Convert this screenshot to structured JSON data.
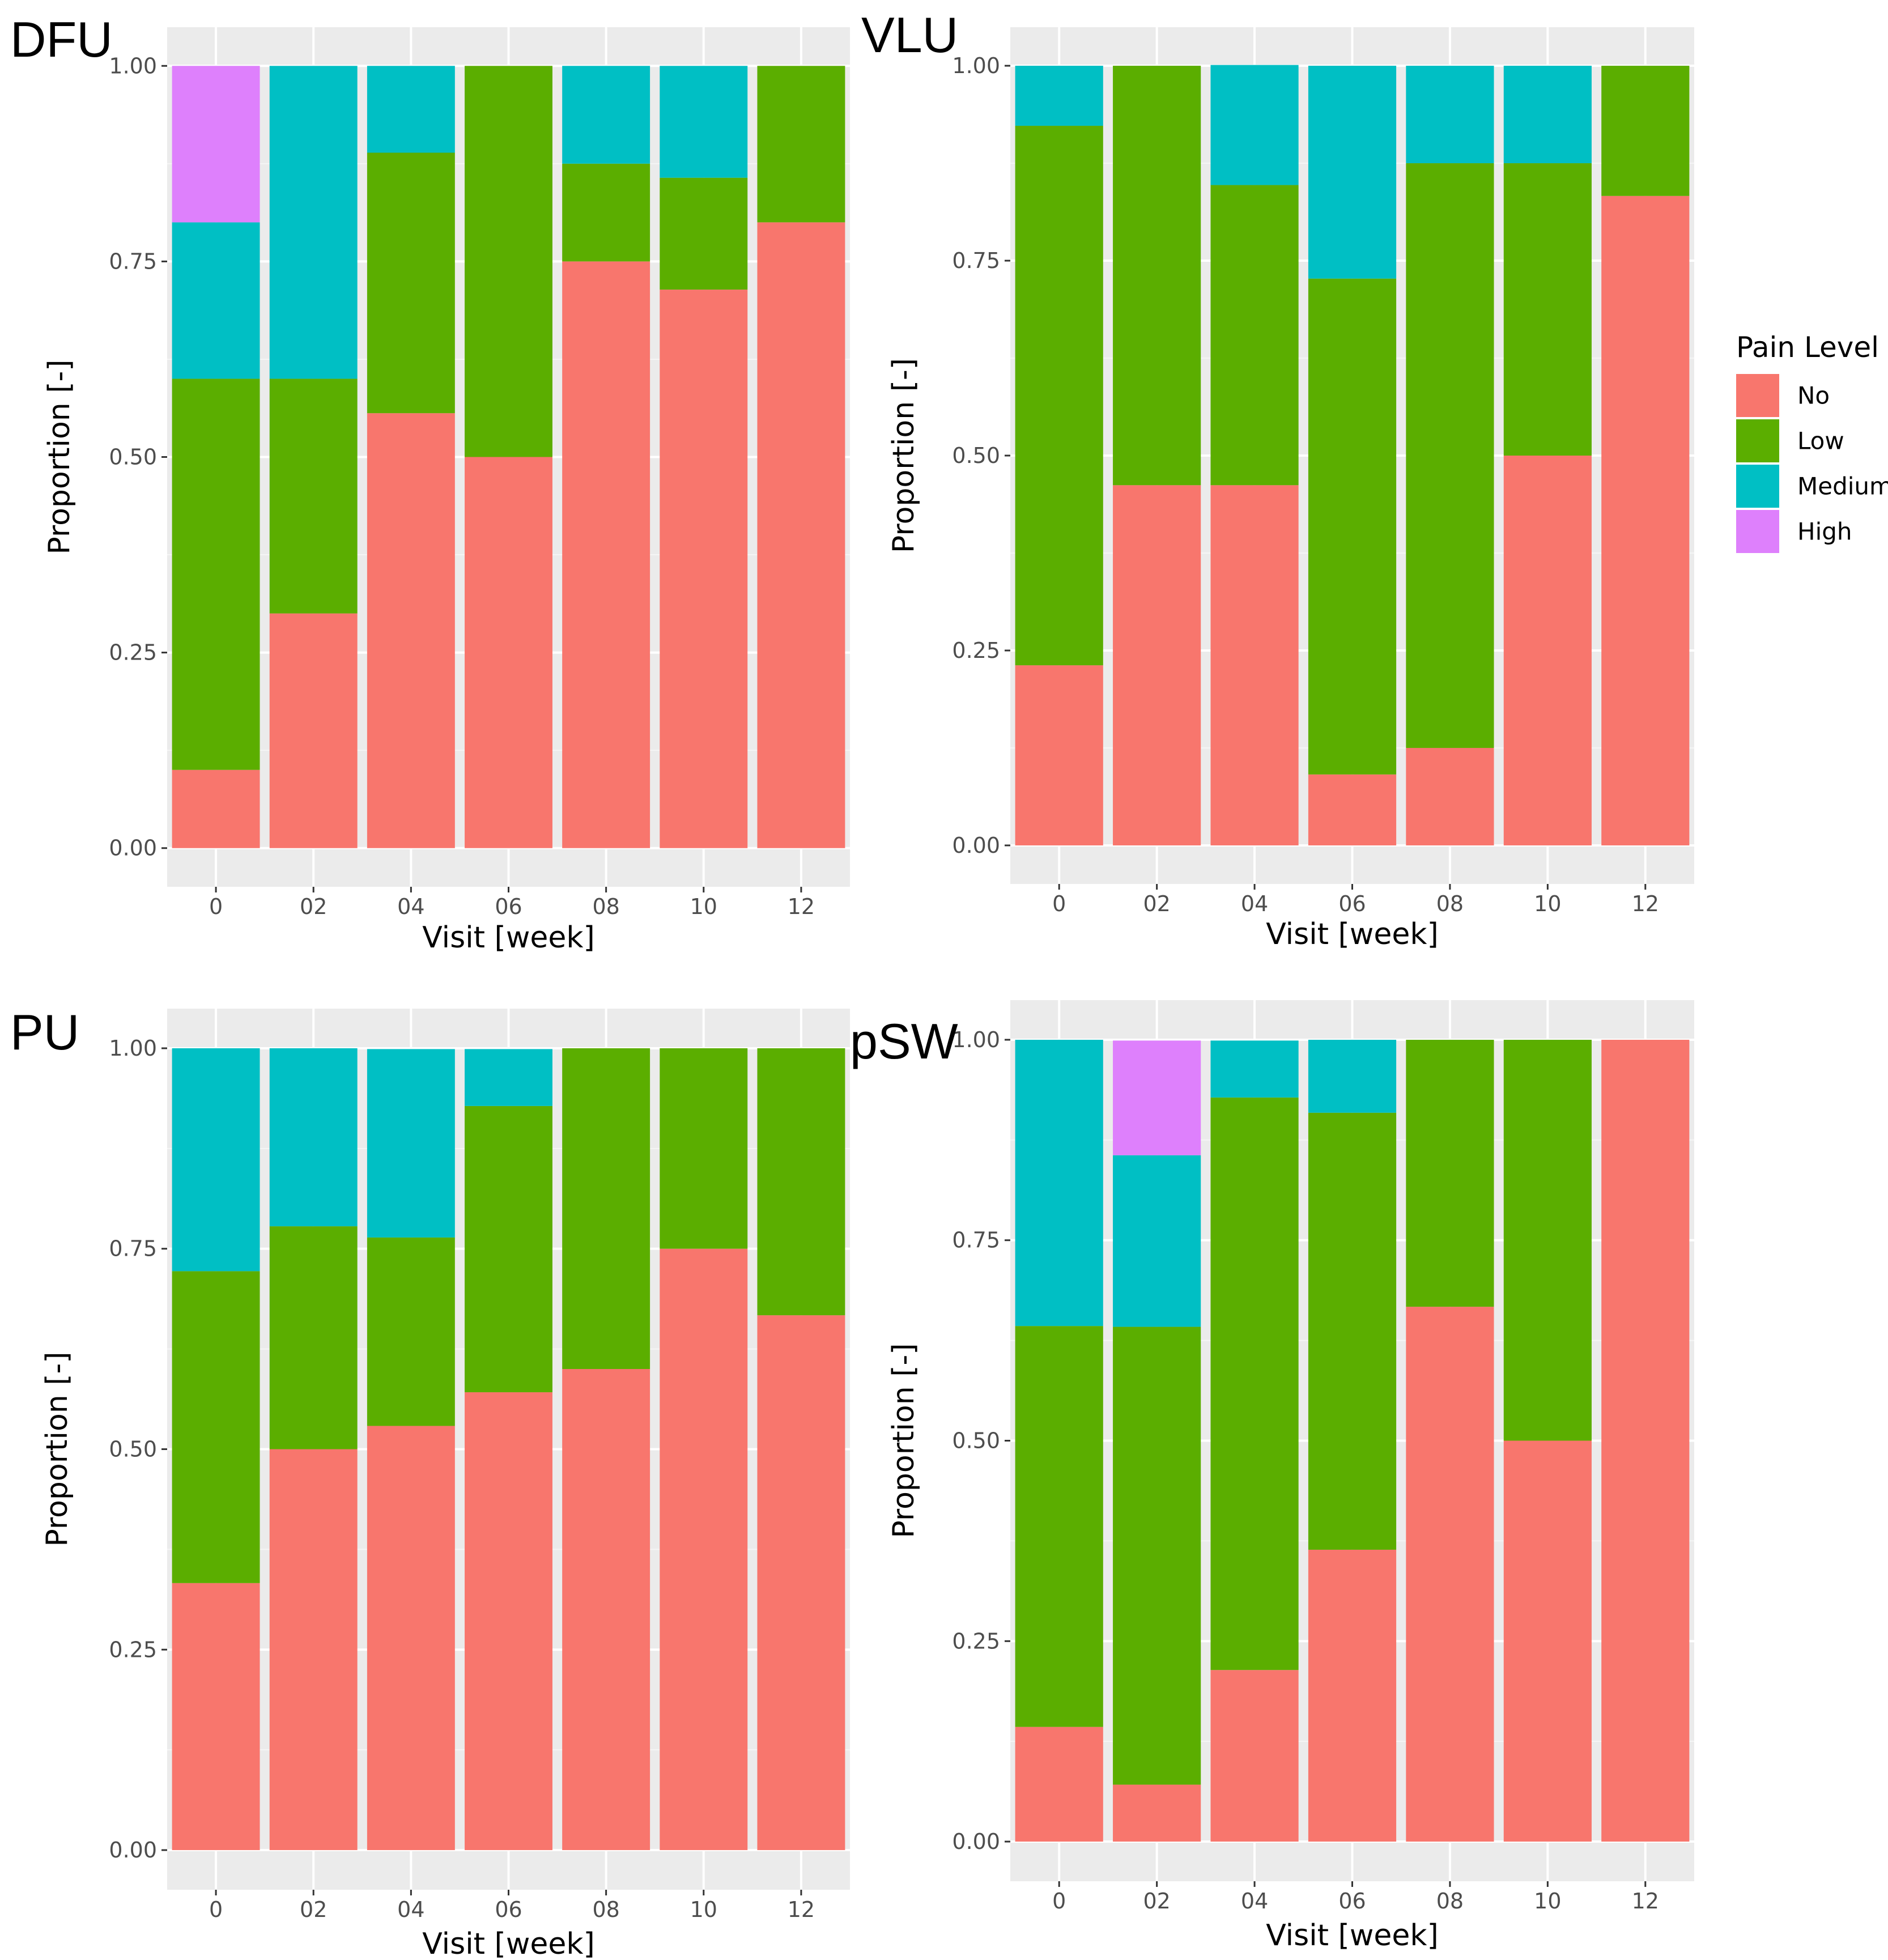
{
  "legend": {
    "title": "Pain Level",
    "entries": [
      {
        "key": "no",
        "label": "No",
        "color": "#F8766D"
      },
      {
        "key": "low",
        "label": "Low",
        "color": "#5BAE00"
      },
      {
        "key": "medium",
        "label": "Medium",
        "color": "#00BFC4"
      },
      {
        "key": "high",
        "label": "High",
        "color": "#DE80FC"
      }
    ]
  },
  "chart_data": [
    {
      "type": "bar",
      "stacked": true,
      "title": "DFU",
      "xlabel": "Visit [week]",
      "ylabel": "Proportion [-]",
      "ylim": [
        0,
        1
      ],
      "yticks": [
        "0.00",
        "0.25",
        "0.50",
        "0.75",
        "1.00"
      ],
      "categories": [
        "0",
        "02",
        "04",
        "06",
        "08",
        "10",
        "12"
      ],
      "series": [
        {
          "name": "No",
          "values": [
            0.1,
            0.3,
            0.556,
            0.5,
            0.75,
            0.714,
            0.8
          ]
        },
        {
          "name": "Low",
          "values": [
            0.5,
            0.3,
            0.333,
            0.5,
            0.125,
            0.143,
            0.2
          ]
        },
        {
          "name": "Medium",
          "values": [
            0.2,
            0.4,
            0.111,
            0.0,
            0.125,
            0.143,
            0.0
          ]
        },
        {
          "name": "High",
          "values": [
            0.2,
            0.0,
            0.0,
            0.0,
            0.0,
            0.0,
            0.0
          ]
        }
      ]
    },
    {
      "type": "bar",
      "stacked": true,
      "title": "VLU",
      "xlabel": "Visit [week]",
      "ylabel": "Proportion [-]",
      "ylim": [
        0,
        1
      ],
      "yticks": [
        "0.00",
        "0.25",
        "0.50",
        "0.75",
        "1.00"
      ],
      "categories": [
        "0",
        "02",
        "04",
        "06",
        "08",
        "10",
        "12"
      ],
      "series": [
        {
          "name": "No",
          "values": [
            0.231,
            0.462,
            0.462,
            0.091,
            0.125,
            0.5,
            0.833
          ]
        },
        {
          "name": "Low",
          "values": [
            0.692,
            0.538,
            0.385,
            0.636,
            0.75,
            0.375,
            0.167
          ]
        },
        {
          "name": "Medium",
          "values": [
            0.077,
            0.0,
            0.154,
            0.273,
            0.125,
            0.125,
            0.0
          ]
        },
        {
          "name": "High",
          "values": [
            0.0,
            0.0,
            0.0,
            0.0,
            0.0,
            0.0,
            0.0
          ]
        }
      ]
    },
    {
      "type": "bar",
      "stacked": true,
      "title": "PU",
      "xlabel": "Visit [week]",
      "ylabel": "Proportion [-]",
      "ylim": [
        0,
        1
      ],
      "yticks": [
        "0.00",
        "0.25",
        "0.50",
        "0.75",
        "1.00"
      ],
      "categories": [
        "0",
        "02",
        "04",
        "06",
        "08",
        "10",
        "12"
      ],
      "series": [
        {
          "name": "No",
          "values": [
            0.333,
            0.5,
            0.529,
            0.571,
            0.6,
            0.75,
            0.667
          ]
        },
        {
          "name": "Low",
          "values": [
            0.389,
            0.278,
            0.235,
            0.357,
            0.4,
            0.25,
            0.333
          ]
        },
        {
          "name": "Medium",
          "values": [
            0.278,
            0.222,
            0.235,
            0.071,
            0.0,
            0.0,
            0.0
          ]
        },
        {
          "name": "High",
          "values": [
            0.0,
            0.0,
            0.0,
            0.0,
            0.0,
            0.0,
            0.0
          ]
        }
      ]
    },
    {
      "type": "bar",
      "stacked": true,
      "title": "pSW",
      "xlabel": "Visit [week]",
      "ylabel": "Proportion [-]",
      "ylim": [
        0,
        1
      ],
      "yticks": [
        "0.00",
        "0.25",
        "0.50",
        "0.75",
        "1.00"
      ],
      "categories": [
        "0",
        "02",
        "04",
        "06",
        "08",
        "10",
        "12"
      ],
      "series": [
        {
          "name": "No",
          "values": [
            0.143,
            0.071,
            0.214,
            0.364,
            0.667,
            0.5,
            1.0
          ]
        },
        {
          "name": "Low",
          "values": [
            0.5,
            0.571,
            0.714,
            0.545,
            0.333,
            0.5,
            0.0
          ]
        },
        {
          "name": "Medium",
          "values": [
            0.357,
            0.214,
            0.071,
            0.091,
            0.0,
            0.0,
            0.0
          ]
        },
        {
          "name": "High",
          "values": [
            0.0,
            0.143,
            0.0,
            0.0,
            0.0,
            0.0,
            0.0
          ]
        }
      ]
    }
  ]
}
